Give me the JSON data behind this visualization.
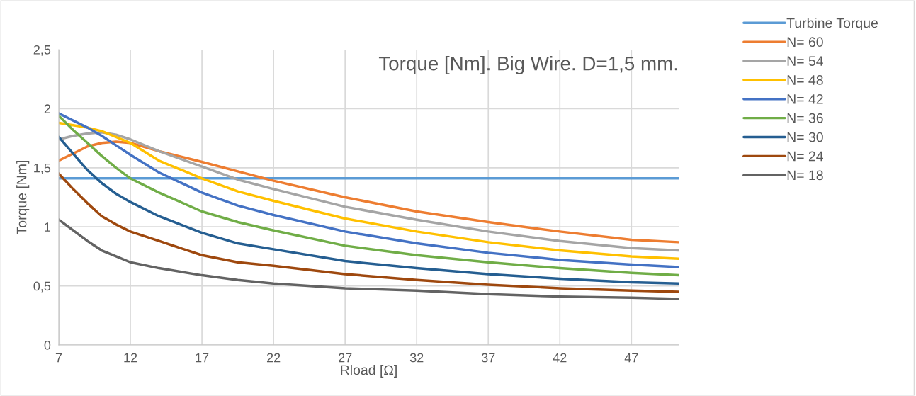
{
  "chart_data": {
    "type": "line",
    "title": "Torque [Nm]. Big Wire. D=1,5 mm.",
    "xlabel": "Rload [Ω]",
    "ylabel": "Torque [Nm]",
    "x": [
      7,
      8,
      9,
      10,
      11,
      12,
      14,
      17,
      19.5,
      22,
      27,
      32,
      37,
      42,
      47,
      50.3
    ],
    "series": [
      {
        "name": "Turbine Torque",
        "color": "#5b9bd5",
        "values": [
          1.41,
          1.41,
          1.41,
          1.41,
          1.41,
          1.41,
          1.41,
          1.41,
          1.41,
          1.41,
          1.41,
          1.41,
          1.41,
          1.41,
          1.41,
          1.41
        ]
      },
      {
        "name": "N= 60",
        "color": "#ed7d31",
        "values": [
          1.56,
          1.62,
          1.68,
          1.71,
          1.72,
          1.71,
          1.64,
          1.55,
          1.47,
          1.39,
          1.25,
          1.13,
          1.04,
          0.96,
          0.89,
          0.87
        ]
      },
      {
        "name": "N= 54",
        "color": "#a5a5a5",
        "values": [
          1.74,
          1.77,
          1.79,
          1.8,
          1.78,
          1.74,
          1.64,
          1.51,
          1.4,
          1.32,
          1.17,
          1.06,
          0.96,
          0.88,
          0.82,
          0.8
        ]
      },
      {
        "name": "N= 48",
        "color": "#ffc000",
        "values": [
          1.88,
          1.86,
          1.84,
          1.81,
          1.76,
          1.71,
          1.56,
          1.41,
          1.3,
          1.22,
          1.07,
          0.96,
          0.87,
          0.8,
          0.75,
          0.73
        ]
      },
      {
        "name": "N= 42",
        "color": "#4472c4",
        "values": [
          1.96,
          1.9,
          1.84,
          1.77,
          1.69,
          1.61,
          1.46,
          1.29,
          1.18,
          1.1,
          0.96,
          0.86,
          0.78,
          0.72,
          0.68,
          0.66
        ]
      },
      {
        "name": "N= 36",
        "color": "#70ad47",
        "values": [
          1.94,
          1.82,
          1.71,
          1.6,
          1.5,
          1.41,
          1.29,
          1.13,
          1.04,
          0.97,
          0.84,
          0.76,
          0.7,
          0.65,
          0.61,
          0.59
        ]
      },
      {
        "name": "N= 30",
        "color": "#255e91",
        "values": [
          1.76,
          1.62,
          1.48,
          1.37,
          1.28,
          1.21,
          1.09,
          0.95,
          0.86,
          0.81,
          0.71,
          0.65,
          0.6,
          0.56,
          0.53,
          0.52
        ]
      },
      {
        "name": "N= 24",
        "color": "#9e480e",
        "values": [
          1.45,
          1.32,
          1.2,
          1.09,
          1.02,
          0.96,
          0.88,
          0.76,
          0.7,
          0.67,
          0.6,
          0.55,
          0.51,
          0.48,
          0.46,
          0.45
        ]
      },
      {
        "name": "N= 18",
        "color": "#636363",
        "values": [
          1.06,
          0.97,
          0.88,
          0.8,
          0.75,
          0.7,
          0.65,
          0.59,
          0.55,
          0.52,
          0.48,
          0.46,
          0.43,
          0.41,
          0.4,
          0.39
        ]
      }
    ],
    "xlim": [
      7,
      50.3
    ],
    "xticks": [
      7,
      12,
      17,
      22,
      27,
      32,
      37,
      42,
      47
    ],
    "ylim": [
      0,
      2.5
    ],
    "yticks": [
      0,
      {
        "value": 0.5,
        "label": "0,5"
      },
      1,
      {
        "value": 1.5,
        "label": "1,5"
      },
      2,
      {
        "value": 2.5,
        "label": "2,5"
      }
    ],
    "grid": true,
    "legend": "right",
    "marker": "none",
    "line_style": "solid"
  }
}
